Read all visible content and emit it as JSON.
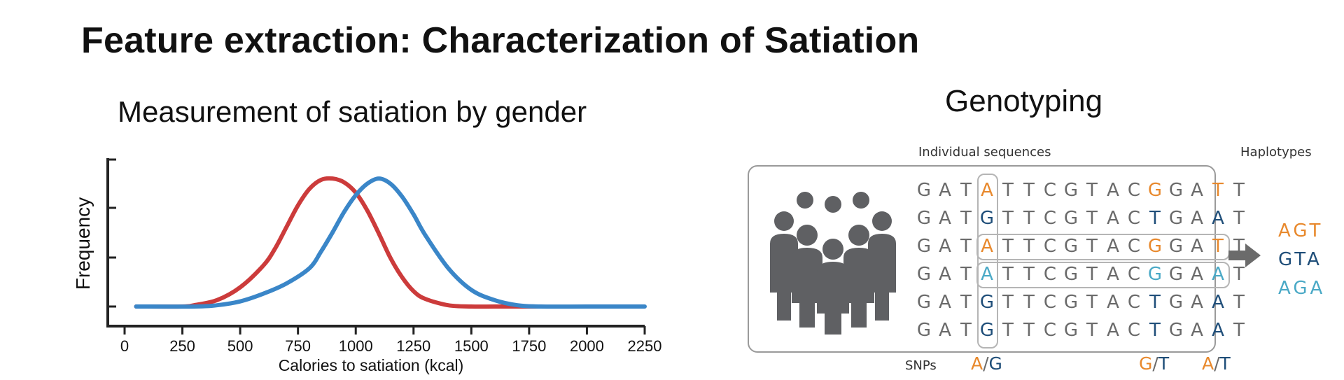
{
  "slide": {
    "title": "Feature extraction: Characterization of Satiation"
  },
  "chart": {
    "title": "Measurement of satiation by gender"
  },
  "chart_data": {
    "type": "line",
    "title": "Measurement of satiation by gender",
    "xlabel": "Calories to satiation (kcal)",
    "ylabel": "Frequency",
    "xlim": [
      0,
      2250
    ],
    "ylim": [
      0,
      1.05
    ],
    "xticks": [
      "0",
      "250",
      "500",
      "750",
      "1000",
      "1250",
      "1500",
      "1750",
      "2000",
      "2250"
    ],
    "grid": false,
    "series": [
      {
        "color": "#cc3b3b",
        "x": [
          50,
          250,
          300,
          400,
          500,
          600,
          650,
          700,
          750,
          800,
          850,
          900,
          950,
          1000,
          1050,
          1100,
          1150,
          1200,
          1250,
          1300,
          1400,
          1500,
          1600,
          1700,
          1800
        ],
        "values": [
          0.0,
          0.0,
          0.01,
          0.05,
          0.15,
          0.32,
          0.45,
          0.62,
          0.79,
          0.92,
          0.99,
          1.0,
          0.97,
          0.89,
          0.75,
          0.57,
          0.38,
          0.23,
          0.12,
          0.06,
          0.01,
          0.0,
          0.0,
          0.0,
          0.0
        ]
      },
      {
        "color": "#3a86c8",
        "x": [
          50,
          300,
          400,
          500,
          600,
          700,
          800,
          850,
          900,
          950,
          1000,
          1050,
          1100,
          1150,
          1200,
          1250,
          1300,
          1400,
          1500,
          1600,
          1700,
          1800,
          2000,
          2250
        ],
        "values": [
          0.0,
          0.0,
          0.01,
          0.04,
          0.1,
          0.18,
          0.3,
          0.43,
          0.58,
          0.74,
          0.87,
          0.96,
          1.0,
          0.96,
          0.86,
          0.72,
          0.56,
          0.3,
          0.13,
          0.05,
          0.01,
          0.0,
          0.0,
          0.0
        ]
      }
    ]
  },
  "genotyping": {
    "title": "Genotyping",
    "individual_label": "Individual sequences",
    "haplotype_label": "Haplotypes",
    "snps_label": "SNPs",
    "sequences": [
      [
        "G",
        "A",
        "T",
        "A",
        "T",
        "T",
        "C",
        "G",
        "T",
        "A",
        "C",
        "G",
        "G",
        "A",
        "T",
        "T"
      ],
      [
        "G",
        "A",
        "T",
        "G",
        "T",
        "T",
        "C",
        "G",
        "T",
        "A",
        "C",
        "T",
        "G",
        "A",
        "A",
        "T"
      ],
      [
        "G",
        "A",
        "T",
        "A",
        "T",
        "T",
        "C",
        "G",
        "T",
        "A",
        "C",
        "G",
        "G",
        "A",
        "T",
        "T"
      ],
      [
        "G",
        "A",
        "T",
        "A",
        "T",
        "T",
        "C",
        "G",
        "T",
        "A",
        "C",
        "G",
        "G",
        "A",
        "A",
        "T"
      ],
      [
        "G",
        "A",
        "T",
        "G",
        "T",
        "T",
        "C",
        "G",
        "T",
        "A",
        "C",
        "T",
        "G",
        "A",
        "A",
        "T"
      ],
      [
        "G",
        "A",
        "T",
        "G",
        "T",
        "T",
        "C",
        "G",
        "T",
        "A",
        "C",
        "T",
        "G",
        "A",
        "A",
        "T"
      ]
    ],
    "snps": [
      {
        "a": "A",
        "sep": "/",
        "b": "G",
        "col": 3
      },
      {
        "a": "G",
        "sep": "/",
        "b": "T",
        "col": 11
      },
      {
        "a": "A",
        "sep": "/",
        "b": "T",
        "col": 14
      }
    ],
    "haplotypes": [
      "AGT",
      "GTA",
      "AGA"
    ],
    "colors": {
      "orange": "#e8892d",
      "navy": "#1f4e79",
      "teal": "#4aa9c6",
      "gray": "#6a6a6a"
    },
    "icon": "people-group-icon"
  }
}
